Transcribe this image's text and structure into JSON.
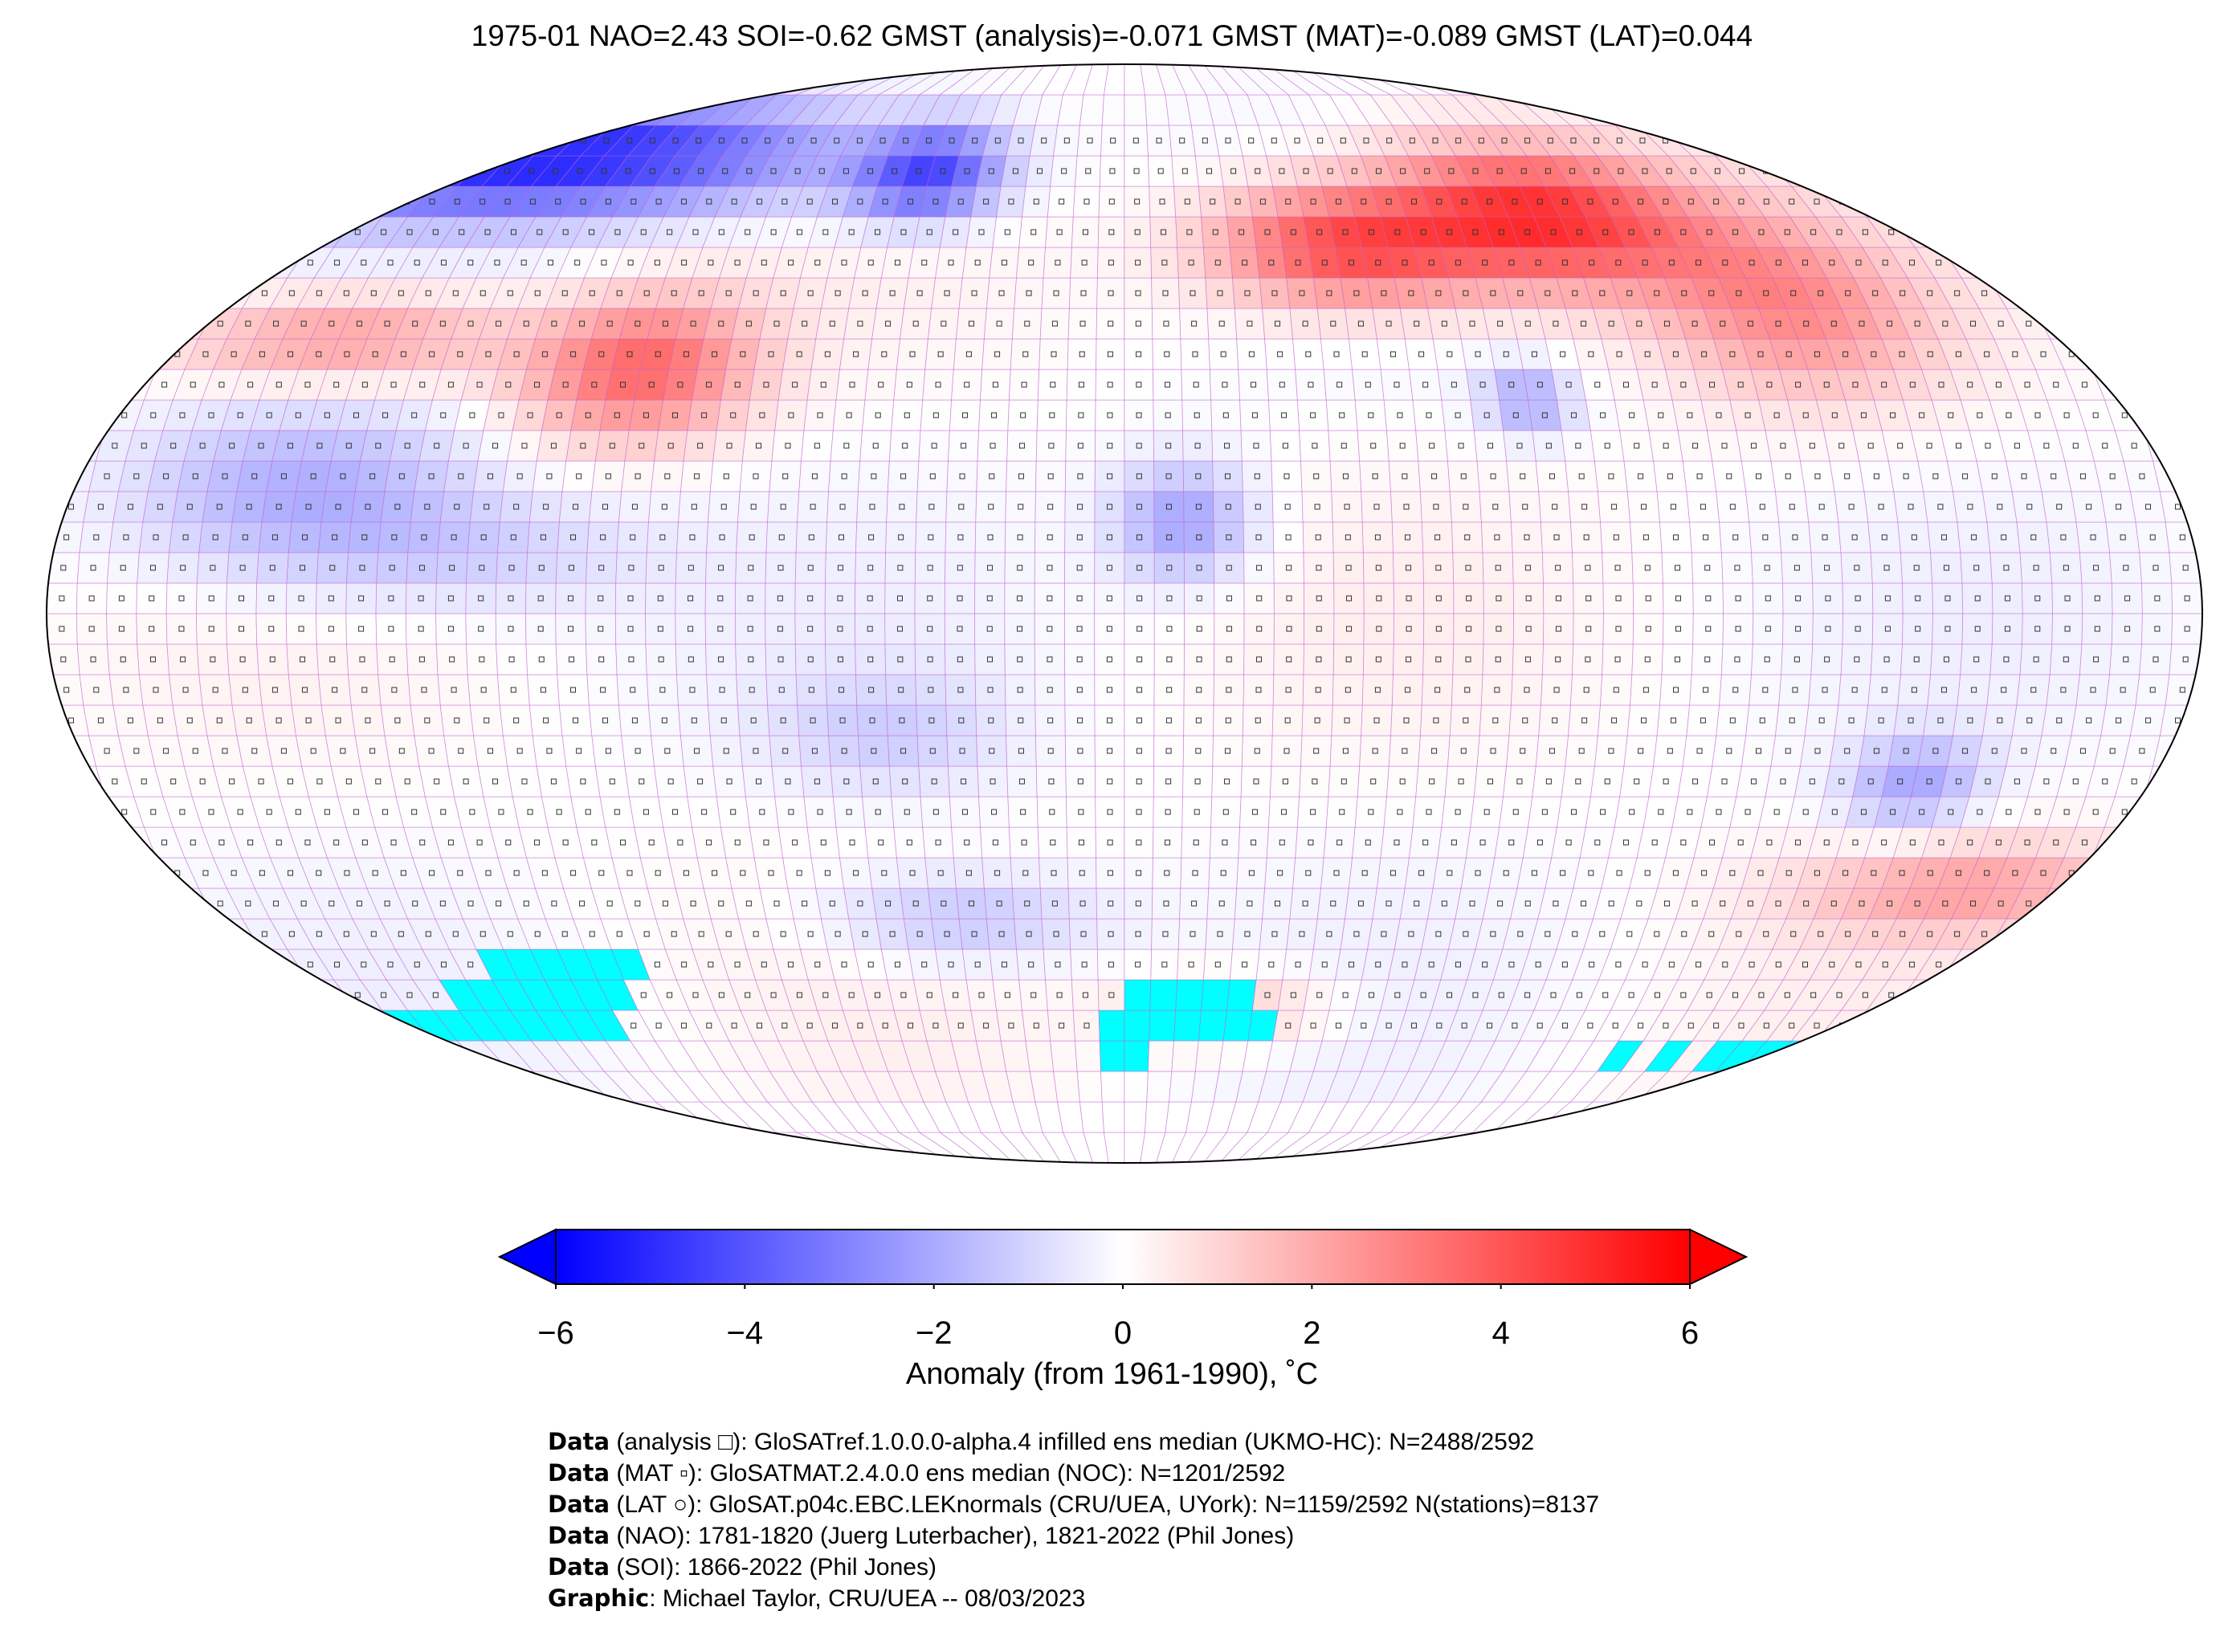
{
  "title": "1975-01 NAO=2.43 SOI=-0.62 GMST (analysis)=-0.071 GMST (MAT)=-0.089 GMST (LAT)=0.044",
  "colorbar": {
    "label": "Anomaly (from 1961-1990), ˚C",
    "ticks": [
      "−6",
      "−4",
      "−2",
      "0",
      "2",
      "4",
      "6"
    ],
    "range": [
      -6,
      6
    ],
    "colors": {
      "low": "#0000ff",
      "mid": "#ffffff",
      "high": "#ff0000",
      "missing_ice": "#00ffff"
    }
  },
  "credits": [
    {
      "bold": "Data",
      "text": " (analysis □): GloSATref.1.0.0.0-alpha.4 infilled ens median (UKMO-HC): N=2488/2592"
    },
    {
      "bold": "Data",
      "text": " (MAT ▫): GloSATMAT.2.4.0.0 ens median (NOC): N=1201/2592"
    },
    {
      "bold": "Data",
      "text": " (LAT ○): GloSAT.p04c.EBC.LEKnormals (CRU/UEA, UYork): N=1159/2592 N(stations)=8137"
    },
    {
      "bold": "Data",
      "text": " (NAO): 1781-1820 (Juerg Luterbacher), 1821-2022 (Phil Jones)"
    },
    {
      "bold": "Data",
      "text": " (SOI): 1866-2022 (Phil Jones)"
    },
    {
      "bold": "Graphic",
      "text": ": Michael Taylor, CRU/UEA -- 08/03/2023"
    }
  ]
}
